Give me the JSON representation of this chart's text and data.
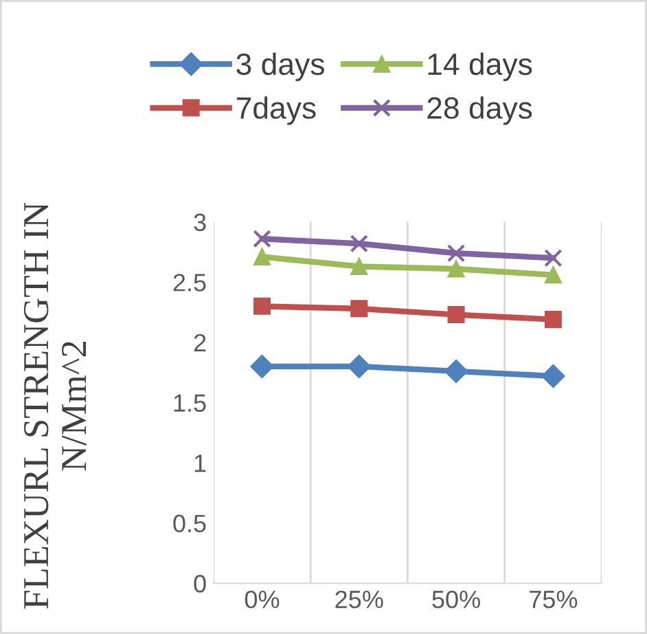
{
  "chart_data": {
    "type": "line",
    "ylabel": "FLEXURL STRENGTH IN\nN/Mm^2",
    "categories": [
      "0%",
      "25%",
      "50%",
      "75%"
    ],
    "series": [
      {
        "name": "3 days",
        "color": "#4f81bd",
        "marker": "diamond",
        "values": [
          1.8,
          1.8,
          1.76,
          1.72
        ]
      },
      {
        "name": "7days",
        "color": "#c0504d",
        "marker": "square",
        "values": [
          2.3,
          2.28,
          2.23,
          2.19
        ]
      },
      {
        "name": "14 days",
        "color": "#9bbb59",
        "marker": "triangle",
        "values": [
          2.71,
          2.63,
          2.61,
          2.56
        ]
      },
      {
        "name": "28 days",
        "color": "#8064a2",
        "marker": "cross",
        "values": [
          2.86,
          2.82,
          2.74,
          2.7
        ]
      }
    ],
    "ylim": [
      0,
      3
    ],
    "yticks": [
      0,
      0.5,
      1,
      1.5,
      2,
      2.5,
      3
    ],
    "grid": "x",
    "legend": "top"
  }
}
